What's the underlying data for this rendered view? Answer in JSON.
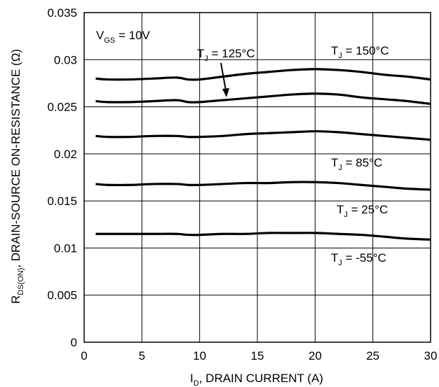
{
  "chart_data": {
    "type": "line",
    "xlabel": {
      "prefix": "I",
      "sub": "D",
      "rest": ", DRAIN CURRENT (A)"
    },
    "ylabel": {
      "prefix": "R",
      "sub": "DS(ON)",
      "rest": ",   DRAIN-SOURCE ON-RESISTANCE (Ω)"
    },
    "xlim": [
      0,
      30
    ],
    "ylim": [
      0,
      0.035
    ],
    "xticks": [
      0,
      5,
      10,
      15,
      20,
      25,
      30
    ],
    "yticks": [
      0,
      0.005,
      0.01,
      0.015,
      0.02,
      0.025,
      0.03,
      0.035
    ],
    "ytick_labels": [
      "0",
      "0.005",
      "0.01",
      "0.015",
      "0.02",
      "0.025",
      "0.03",
      "0.035"
    ],
    "grid": true,
    "condition": {
      "prefix": "V",
      "sub": "GS",
      "rest": " = 10V"
    },
    "series": [
      {
        "name": "T_J = 150°C",
        "color": "#000000",
        "x": [
          1,
          2,
          4,
          6,
          8,
          9,
          10,
          12,
          14,
          16,
          18,
          20,
          22,
          24,
          26,
          28,
          30
        ],
        "y": [
          0.028,
          0.0279,
          0.0279,
          0.028,
          0.0281,
          0.0279,
          0.0279,
          0.0282,
          0.0285,
          0.0287,
          0.0289,
          0.029,
          0.0289,
          0.0287,
          0.0284,
          0.0282,
          0.0279
        ]
      },
      {
        "name": "T_J = 125°C",
        "color": "#000000",
        "x": [
          1,
          2,
          4,
          6,
          8,
          9,
          10,
          12,
          14,
          16,
          18,
          20,
          22,
          24,
          26,
          28,
          30
        ],
        "y": [
          0.0256,
          0.0255,
          0.0255,
          0.0256,
          0.0257,
          0.0255,
          0.0255,
          0.0257,
          0.0259,
          0.0261,
          0.0263,
          0.0264,
          0.0263,
          0.026,
          0.0258,
          0.0256,
          0.0253
        ]
      },
      {
        "name": "T_J = 85°C (upper)",
        "color": "#000000",
        "x": [
          1,
          2,
          4,
          6,
          8,
          9,
          10,
          12,
          14,
          16,
          18,
          20,
          22,
          24,
          26,
          28,
          30
        ],
        "y": [
          0.0219,
          0.0218,
          0.0218,
          0.0219,
          0.0219,
          0.0218,
          0.0218,
          0.0219,
          0.0221,
          0.0222,
          0.0223,
          0.0224,
          0.0223,
          0.0221,
          0.0219,
          0.0217,
          0.0215
        ]
      },
      {
        "name": "T_J = 25°C",
        "color": "#000000",
        "x": [
          1,
          2,
          4,
          6,
          8,
          9,
          10,
          12,
          14,
          16,
          18,
          20,
          22,
          24,
          26,
          28,
          30
        ],
        "y": [
          0.0168,
          0.0167,
          0.0167,
          0.0168,
          0.0168,
          0.0167,
          0.0167,
          0.0168,
          0.0169,
          0.0169,
          0.017,
          0.017,
          0.0169,
          0.0167,
          0.0165,
          0.0163,
          0.0162
        ]
      },
      {
        "name": "T_J = -55°C",
        "color": "#000000",
        "x": [
          1,
          2,
          4,
          6,
          8,
          9,
          10,
          12,
          14,
          16,
          18,
          20,
          22,
          24,
          26,
          28,
          30
        ],
        "y": [
          0.0115,
          0.0115,
          0.0115,
          0.0115,
          0.0115,
          0.0114,
          0.0114,
          0.0115,
          0.0115,
          0.0116,
          0.0116,
          0.0116,
          0.0115,
          0.0114,
          0.0112,
          0.011,
          0.0109
        ]
      }
    ],
    "annotations": [
      {
        "prefix": "T",
        "sub": "J",
        "rest": " = 125°C"
      },
      {
        "prefix": "T",
        "sub": "J",
        "rest": " = 150°C"
      },
      {
        "prefix": "T",
        "sub": "J",
        "rest": " = 85°C"
      },
      {
        "prefix": "T",
        "sub": "J",
        "rest": " = 25°C"
      },
      {
        "prefix": "T",
        "sub": "J",
        "rest": " = -55°C"
      }
    ]
  }
}
